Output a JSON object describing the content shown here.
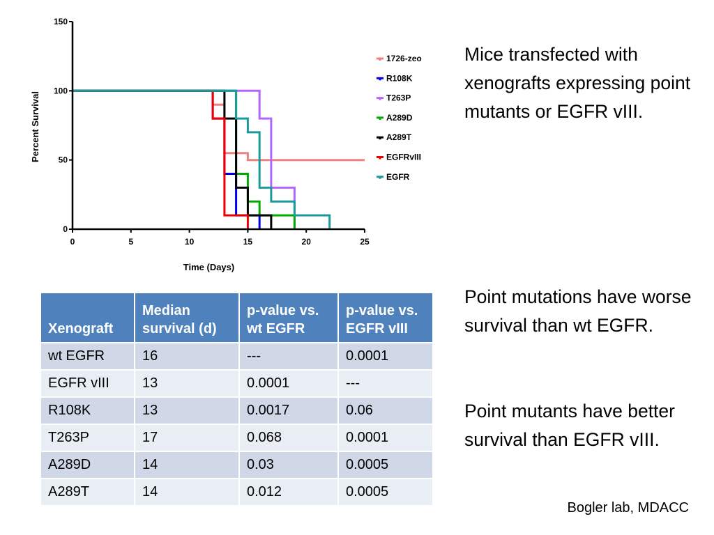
{
  "chart_data": {
    "type": "line",
    "subtype": "kaplan-meier-step",
    "xlabel": "Time (Days)",
    "ylabel": "Percent Survival",
    "xlim": [
      0,
      25
    ],
    "ylim": [
      0,
      150
    ],
    "xticks": [
      0,
      5,
      10,
      15,
      20,
      25
    ],
    "yticks": [
      0,
      50,
      100,
      150
    ],
    "legend_position": "right",
    "series": [
      {
        "name": "1726-zeo",
        "color": "#f08080",
        "points": [
          [
            0,
            100
          ],
          [
            12,
            100
          ],
          [
            12,
            90
          ],
          [
            13,
            90
          ],
          [
            13,
            55
          ],
          [
            15,
            55
          ],
          [
            15,
            50
          ],
          [
            25,
            50
          ]
        ]
      },
      {
        "name": "R108K",
        "color": "#0000ee",
        "points": [
          [
            0,
            100
          ],
          [
            12,
            100
          ],
          [
            12,
            80
          ],
          [
            13,
            80
          ],
          [
            13,
            40
          ],
          [
            14,
            40
          ],
          [
            14,
            10
          ],
          [
            16,
            10
          ],
          [
            16,
            0
          ]
        ]
      },
      {
        "name": "T263P",
        "color": "#b266ff",
        "points": [
          [
            0,
            100
          ],
          [
            16,
            100
          ],
          [
            16,
            80
          ],
          [
            17,
            80
          ],
          [
            17,
            30
          ],
          [
            19,
            30
          ],
          [
            19,
            0
          ]
        ]
      },
      {
        "name": "A289D",
        "color": "#00aa00",
        "points": [
          [
            0,
            100
          ],
          [
            14,
            100
          ],
          [
            14,
            40
          ],
          [
            15,
            40
          ],
          [
            15,
            20
          ],
          [
            16,
            20
          ],
          [
            16,
            10
          ],
          [
            19,
            10
          ],
          [
            19,
            0
          ]
        ]
      },
      {
        "name": "A289T",
        "color": "#000000",
        "points": [
          [
            0,
            100
          ],
          [
            13,
            100
          ],
          [
            13,
            80
          ],
          [
            14,
            80
          ],
          [
            14,
            30
          ],
          [
            15,
            30
          ],
          [
            15,
            10
          ],
          [
            17,
            10
          ],
          [
            17,
            0
          ]
        ]
      },
      {
        "name": "EGFRvIII",
        "color": "#ee0000",
        "points": [
          [
            0,
            100
          ],
          [
            12,
            100
          ],
          [
            12,
            80
          ],
          [
            13,
            80
          ],
          [
            13,
            10
          ],
          [
            15,
            10
          ],
          [
            15,
            0
          ]
        ]
      },
      {
        "name": "EGFR",
        "color": "#1a9a9a",
        "points": [
          [
            0,
            100
          ],
          [
            14,
            100
          ],
          [
            14,
            80
          ],
          [
            15,
            80
          ],
          [
            15,
            70
          ],
          [
            16,
            70
          ],
          [
            16,
            30
          ],
          [
            17,
            30
          ],
          [
            17,
            20
          ],
          [
            19,
            20
          ],
          [
            19,
            10
          ],
          [
            22,
            10
          ],
          [
            22,
            0
          ]
        ]
      }
    ]
  },
  "table": {
    "headers": [
      "Xenograft",
      "Median survival (d)",
      "p-value vs. wt EGFR",
      "p-value vs. EGFR vIII"
    ],
    "rows": [
      [
        "wt EGFR",
        "16",
        "---",
        "0.0001"
      ],
      [
        "EGFR vIII",
        "13",
        "0.0001",
        "---"
      ],
      [
        "R108K",
        "13",
        "0.0017",
        "0.06"
      ],
      [
        "T263P",
        "17",
        "0.068",
        "0.0001"
      ],
      [
        "A289D",
        "14",
        "0.03",
        "0.0005"
      ],
      [
        "A289T",
        "14",
        "0.012",
        "0.0005"
      ]
    ]
  },
  "text": {
    "description": "Mice transfected with xenografts expressing point mutants or EGFR vIII.",
    "finding_1": "Point mutations have worse survival than wt EGFR.",
    "finding_2": "Point mutants have better survival than EGFR vIII.",
    "credit": "Bogler lab, MDACC"
  }
}
